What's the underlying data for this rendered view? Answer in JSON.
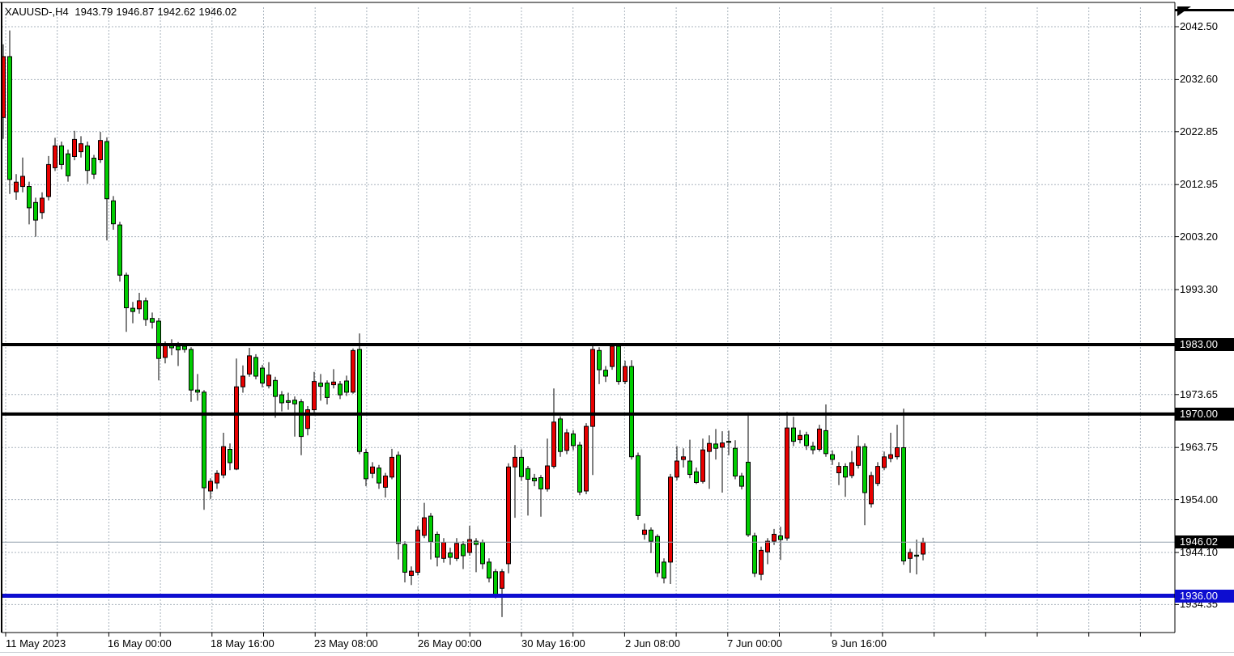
{
  "header": {
    "symbol_period": "XAUUSD-,H4",
    "open": "1943.79",
    "high": "1946.87",
    "low": "1942.62",
    "close": "1946.02"
  },
  "price_axis": {
    "plain_labels": [
      {
        "text": "2042.50",
        "price": 2042.5
      },
      {
        "text": "2032.60",
        "price": 2032.6
      },
      {
        "text": "2022.85",
        "price": 2022.85
      },
      {
        "text": "2012.95",
        "price": 2012.95
      },
      {
        "text": "2003.20",
        "price": 2003.2
      },
      {
        "text": "1993.30",
        "price": 1993.3
      },
      {
        "text": "1973.65",
        "price": 1973.65
      },
      {
        "text": "1963.75",
        "price": 1963.75
      },
      {
        "text": "1954.00",
        "price": 1954.0
      },
      {
        "text": "1944.10",
        "price": 1944.1
      },
      {
        "text": "1934.35",
        "price": 1934.35
      }
    ],
    "highlighted_labels": [
      {
        "text": "1983.00",
        "price": 1983.0,
        "style": "black"
      },
      {
        "text": "1970.00",
        "price": 1970.0,
        "style": "black"
      },
      {
        "text": "1946.02",
        "price": 1946.02,
        "style": "black"
      },
      {
        "text": "1936.00",
        "price": 1936.0,
        "style": "blue"
      }
    ]
  },
  "time_axis": {
    "labels": [
      "11 May 2023",
      "16 May 00:00",
      "18 May 16:00",
      "23 May 08:00",
      "26 May 00:00",
      "30 May 16:00",
      "2 Jun 08:00",
      "7 Jun 00:00",
      "9 Jun 16:00"
    ]
  },
  "levels": [
    {
      "name": "resistance-1983",
      "price": 1983.0,
      "color": "#000000",
      "thickness": 4
    },
    {
      "name": "resistance-1970",
      "price": 1970.0,
      "color": "#000000",
      "thickness": 4
    },
    {
      "name": "support-1936",
      "price": 1936.0,
      "color": "#0d0dd0",
      "thickness": 5
    },
    {
      "name": "last-price-line",
      "price": 1946.02,
      "color": "#93a1ad",
      "thickness": 1
    }
  ],
  "colors": {
    "bull_body": "#e80000",
    "bear_body": "#00cd00",
    "wick_and_border": "#000000",
    "grid": "#a9b3bd",
    "background": "#ffffff",
    "axis_text": "#000000",
    "label_bg_black": "#000000",
    "label_bg_blue": "#0d0dd0",
    "label_text": "#ffffff"
  },
  "chart_data": {
    "type": "candlestick",
    "title": "XAUUSD-,H4",
    "symbol": "XAUUSD-",
    "timeframe": "H4",
    "last_bar": {
      "open": 1943.79,
      "high": 1946.87,
      "low": 1942.62,
      "close": 1946.02
    },
    "ylim": [
      1930.0,
      2044.5
    ],
    "grid": "dashed",
    "bull_means": "close>=open drawn red",
    "bear_means": "close<open drawn green",
    "y_ticks": [
      2042.5,
      2032.6,
      2022.85,
      2012.95,
      2003.2,
      1993.3,
      1983.0,
      1973.65,
      1970.0,
      1963.75,
      1954.0,
      1946.02,
      1944.1,
      1936.0,
      1934.35
    ],
    "x_labels": [
      "11 May 2023",
      "16 May 00:00",
      "18 May 16:00",
      "23 May 08:00",
      "26 May 00:00",
      "30 May 16:00",
      "2 Jun 08:00",
      "7 Jun 00:00",
      "9 Jun 16:00"
    ],
    "horizontal_lines": [
      1983.0,
      1970.0,
      1936.0,
      1946.02
    ],
    "candles_format": [
      "open",
      "high",
      "low",
      "close"
    ],
    "candles": [
      [
        2025.5,
        2039.2,
        2021.5,
        2036.9
      ],
      [
        2036.9,
        2041.8,
        2011.2,
        2013.9
      ],
      [
        2011.6,
        2014.9,
        2010.1,
        2013.4
      ],
      [
        2012.6,
        2018.0,
        2011.5,
        2014.5
      ],
      [
        2012.6,
        2013.5,
        2005.5,
        2008.6
      ],
      [
        2009.6,
        2010.5,
        2003.2,
        2006.3
      ],
      [
        2007.7,
        2011.5,
        2006.5,
        2010.4
      ],
      [
        2010.7,
        2018.3,
        2010.0,
        2016.7
      ],
      [
        2016.1,
        2021.7,
        2015.5,
        2020.2
      ],
      [
        2020.2,
        2021.0,
        2015.8,
        2016.7
      ],
      [
        2018.7,
        2019.5,
        2013.5,
        2014.6
      ],
      [
        2018.2,
        2023.0,
        2017.5,
        2021.4
      ],
      [
        2019.1,
        2022.0,
        2018.0,
        2020.6
      ],
      [
        2020.2,
        2021.0,
        2013.1,
        2015.6
      ],
      [
        2017.9,
        2018.5,
        2014.0,
        2014.9
      ],
      [
        2017.6,
        2022.8,
        2017.0,
        2021.2
      ],
      [
        2021.0,
        2021.8,
        2002.5,
        2010.3
      ],
      [
        2009.9,
        2010.8,
        2004.5,
        2005.6
      ],
      [
        2005.4,
        2006.0,
        1994.8,
        1996.0
      ],
      [
        1996.0,
        1996.5,
        1985.4,
        1989.9
      ],
      [
        1989.8,
        1991.0,
        1987.0,
        1989.2
      ],
      [
        1989.7,
        1992.7,
        1988.8,
        1991.2
      ],
      [
        1991.2,
        1991.8,
        1986.5,
        1987.7
      ],
      [
        1987.9,
        1989.0,
        1986.0,
        1987.2
      ],
      [
        1987.4,
        1988.0,
        1976.3,
        1980.4
      ],
      [
        1980.6,
        1983.6,
        1979.5,
        1983.1
      ],
      [
        1982.9,
        1984.0,
        1981.0,
        1982.4
      ],
      [
        1982.7,
        1983.5,
        1979.0,
        1982.0
      ],
      [
        1982.7,
        1983.2,
        1981.5,
        1982.1
      ],
      [
        1982.1,
        1982.5,
        1972.3,
        1974.5
      ],
      [
        1974.5,
        1977.5,
        1972.5,
        1974.1
      ],
      [
        1974.1,
        1974.5,
        1952.1,
        1956.2
      ],
      [
        1955.6,
        1958.0,
        1954.1,
        1957.4
      ],
      [
        1957.1,
        1959.5,
        1956.0,
        1958.9
      ],
      [
        1958.6,
        1966.5,
        1958.0,
        1963.9
      ],
      [
        1963.4,
        1964.5,
        1959.5,
        1960.9
      ],
      [
        1959.7,
        1980.4,
        1959.5,
        1975.1
      ],
      [
        1975.1,
        1979.1,
        1974.0,
        1977.1
      ],
      [
        1977.5,
        1982.4,
        1977.0,
        1980.9
      ],
      [
        1980.6,
        1981.2,
        1976.5,
        1977.1
      ],
      [
        1978.6,
        1979.2,
        1975.0,
        1975.8
      ],
      [
        1975.3,
        1979.7,
        1974.8,
        1977.3
      ],
      [
        1976.3,
        1977.0,
        1969.3,
        1973.3
      ],
      [
        1973.6,
        1974.3,
        1970.5,
        1972.1
      ],
      [
        1972.5,
        1974.0,
        1970.8,
        1972.2
      ],
      [
        1972.6,
        1973.3,
        1965.8,
        1971.9
      ],
      [
        1972.3,
        1972.8,
        1962.3,
        1965.8
      ],
      [
        1967.3,
        1971.5,
        1966.0,
        1970.8
      ],
      [
        1970.8,
        1977.9,
        1970.3,
        1976.1
      ],
      [
        1975.8,
        1977.5,
        1972.5,
        1975.2
      ],
      [
        1975.8,
        1976.3,
        1971.8,
        1973.1
      ],
      [
        1975.5,
        1978.4,
        1974.8,
        1976.0
      ],
      [
        1975.6,
        1976.2,
        1972.8,
        1973.6
      ],
      [
        1976.2,
        1977.2,
        1973.4,
        1974.1
      ],
      [
        1974.1,
        1982.3,
        1973.8,
        1981.9
      ],
      [
        1982.1,
        1985.1,
        1962.5,
        1963.0
      ],
      [
        1962.8,
        1963.5,
        1956.5,
        1957.9
      ],
      [
        1958.9,
        1961.0,
        1958.0,
        1960.1
      ],
      [
        1959.9,
        1960.5,
        1956.0,
        1957.1
      ],
      [
        1956.3,
        1959.0,
        1954.4,
        1958.4
      ],
      [
        1958.2,
        1963.5,
        1957.8,
        1961.9
      ],
      [
        1962.3,
        1963.0,
        1942.8,
        1945.8
      ],
      [
        1945.6,
        1946.2,
        1938.5,
        1940.4
      ],
      [
        1939.8,
        1941.5,
        1938.0,
        1940.6
      ],
      [
        1940.4,
        1949.0,
        1939.8,
        1948.3
      ],
      [
        1947.3,
        1953.4,
        1946.8,
        1950.6
      ],
      [
        1950.9,
        1951.5,
        1942.8,
        1946.1
      ],
      [
        1947.5,
        1948.0,
        1941.5,
        1943.2
      ],
      [
        1943.0,
        1946.8,
        1942.2,
        1946.0
      ],
      [
        1944.0,
        1945.0,
        1941.8,
        1943.2
      ],
      [
        1943.0,
        1946.8,
        1942.5,
        1945.8
      ],
      [
        1945.6,
        1946.2,
        1941.0,
        1943.5
      ],
      [
        1944.1,
        1949.1,
        1943.5,
        1946.5
      ],
      [
        1946.2,
        1946.8,
        1940.4,
        1945.6
      ],
      [
        1946.0,
        1946.5,
        1941.0,
        1942.0
      ],
      [
        1942.3,
        1943.0,
        1938.5,
        1939.3
      ],
      [
        1940.5,
        1941.0,
        1935.5,
        1936.3
      ],
      [
        1937.4,
        1941.0,
        1932.0,
        1940.5
      ],
      [
        1942.0,
        1960.8,
        1940.2,
        1960.1
      ],
      [
        1960.1,
        1964.2,
        1950.6,
        1961.9
      ],
      [
        1961.9,
        1963.4,
        1957.5,
        1958.3
      ],
      [
        1959.8,
        1960.3,
        1951.0,
        1957.8
      ],
      [
        1958.0,
        1958.8,
        1956.5,
        1957.5
      ],
      [
        1958.1,
        1958.6,
        1950.8,
        1956.0
      ],
      [
        1956.0,
        1965.4,
        1955.5,
        1960.3
      ],
      [
        1960.2,
        1974.8,
        1959.8,
        1968.5
      ],
      [
        1969.1,
        1969.6,
        1962.0,
        1963.0
      ],
      [
        1963.2,
        1967.2,
        1962.5,
        1966.5
      ],
      [
        1966.3,
        1967.0,
        1963.2,
        1964.1
      ],
      [
        1964.2,
        1964.8,
        1954.8,
        1955.4
      ],
      [
        1955.6,
        1968.3,
        1955.0,
        1967.7
      ],
      [
        1967.7,
        1982.9,
        1958.6,
        1982.1
      ],
      [
        1981.9,
        1982.5,
        1975.6,
        1978.3
      ],
      [
        1978.2,
        1979.0,
        1976.0,
        1977.1
      ],
      [
        1978.9,
        1983.2,
        1978.3,
        1982.7
      ],
      [
        1982.7,
        1983.1,
        1975.5,
        1976.1
      ],
      [
        1976.1,
        1980.0,
        1975.6,
        1978.9
      ],
      [
        1978.9,
        1980.1,
        1961.5,
        1962.0
      ],
      [
        1962.2,
        1962.8,
        1950.2,
        1951.0
      ],
      [
        1947.5,
        1949.5,
        1946.5,
        1948.3
      ],
      [
        1948.3,
        1948.8,
        1944.0,
        1946.2
      ],
      [
        1947.1,
        1947.5,
        1939.5,
        1940.3
      ],
      [
        1942.3,
        1943.0,
        1938.3,
        1939.3
      ],
      [
        1942.3,
        1958.8,
        1938.2,
        1958.2
      ],
      [
        1958.2,
        1964.0,
        1957.6,
        1961.2
      ],
      [
        1961.5,
        1963.6,
        1960.0,
        1962.0
      ],
      [
        1961.2,
        1965.2,
        1958.0,
        1958.7
      ],
      [
        1959.2,
        1960.0,
        1956.9,
        1957.2
      ],
      [
        1957.4,
        1965.4,
        1957.0,
        1963.3
      ],
      [
        1963.0,
        1966.0,
        1956.0,
        1964.5
      ],
      [
        1964.4,
        1967.2,
        1961.5,
        1963.6
      ],
      [
        1963.8,
        1966.8,
        1955.3,
        1964.6
      ],
      [
        1964.9,
        1966.9,
        1962.3,
        1964.7
      ],
      [
        1963.6,
        1965.1,
        1957.8,
        1958.4
      ],
      [
        1958.4,
        1959.0,
        1955.9,
        1956.5
      ],
      [
        1961.0,
        1970.3,
        1947.0,
        1947.4
      ],
      [
        1947.2,
        1947.8,
        1939.5,
        1940.2
      ],
      [
        1940.0,
        1945.2,
        1938.9,
        1944.5
      ],
      [
        1944.2,
        1946.8,
        1941.9,
        1946.2
      ],
      [
        1946.2,
        1948.5,
        1945.5,
        1947.5
      ],
      [
        1947.2,
        1948.9,
        1942.7,
        1946.5
      ],
      [
        1946.8,
        1970.4,
        1946.3,
        1967.4
      ],
      [
        1967.4,
        1969.5,
        1964.0,
        1964.9
      ],
      [
        1965.2,
        1967.0,
        1964.5,
        1966.0
      ],
      [
        1966.1,
        1966.7,
        1963.3,
        1964.1
      ],
      [
        1964.0,
        1964.8,
        1962.5,
        1963.3
      ],
      [
        1963.4,
        1968.0,
        1963.0,
        1967.2
      ],
      [
        1966.9,
        1971.8,
        1962.0,
        1962.6
      ],
      [
        1962.4,
        1963.2,
        1960.5,
        1961.5
      ],
      [
        1959.0,
        1961.0,
        1956.7,
        1960.2
      ],
      [
        1960.2,
        1960.8,
        1954.5,
        1958.2
      ],
      [
        1958.5,
        1963.1,
        1958.0,
        1960.9
      ],
      [
        1960.4,
        1966.0,
        1959.8,
        1963.9
      ],
      [
        1963.9,
        1964.5,
        1949.2,
        1955.3
      ],
      [
        1953.2,
        1959.2,
        1952.5,
        1958.5
      ],
      [
        1957.0,
        1961.0,
        1956.5,
        1960.2
      ],
      [
        1960.0,
        1963.0,
        1959.5,
        1962.0
      ],
      [
        1961.7,
        1966.5,
        1961.0,
        1962.4
      ],
      [
        1962.0,
        1968.0,
        1961.5,
        1963.7
      ],
      [
        1963.7,
        1971.0,
        1941.8,
        1942.5
      ],
      [
        1943.0,
        1944.8,
        1940.3,
        1944.1
      ],
      [
        1943.6,
        1946.5,
        1940.0,
        1943.4
      ],
      [
        1943.79,
        1946.87,
        1942.62,
        1946.02
      ]
    ]
  }
}
